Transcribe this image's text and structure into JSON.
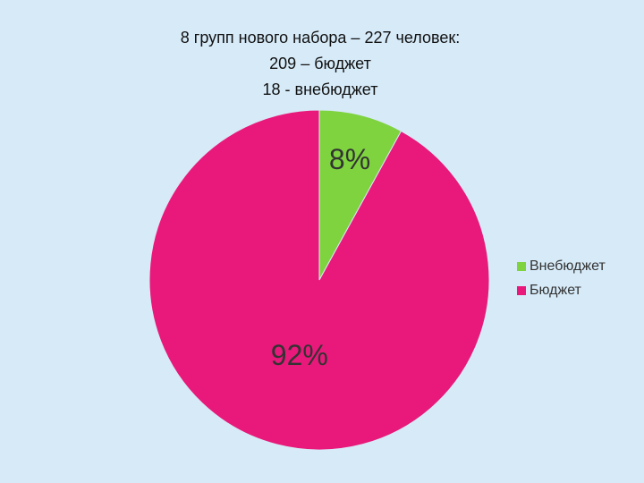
{
  "chart_data": {
    "type": "pie",
    "title": [
      "8 групп нового набора – 227 человек:",
      "209 – бюджет",
      "18 - внебюджет"
    ],
    "categories": [
      "Внебюджет",
      "Бюджет"
    ],
    "values": [
      8,
      92
    ],
    "value_labels": [
      "8%",
      "92%"
    ],
    "colors": [
      "#7ed33f",
      "#e8197a"
    ],
    "legend": "right"
  }
}
